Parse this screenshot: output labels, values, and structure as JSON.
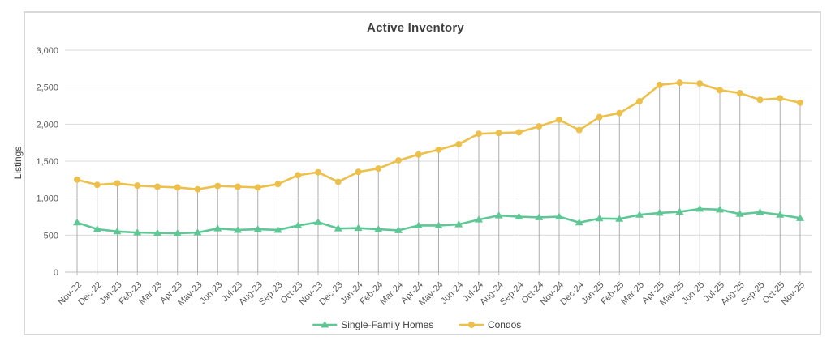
{
  "chart_data": {
    "type": "line",
    "title": "Active Inventory",
    "ylabel": "Listings",
    "xlabel": "",
    "ylim": [
      0,
      3000
    ],
    "ytick_step": 500,
    "grid": "horizontal",
    "legend_position": "bottom-center",
    "drop_lines_series": "Condos",
    "x": [
      "Nov-22",
      "Dec-22",
      "Jan-23",
      "Feb-23",
      "Mar-23",
      "Apr-23",
      "May-23",
      "Jun-23",
      "Jul-23",
      "Aug-23",
      "Sep-23",
      "Oct-23",
      "Nov-23",
      "Dec-23",
      "Jan-24",
      "Feb-24",
      "Mar-24",
      "Apr-24",
      "May-24",
      "Jun-24",
      "Jul-24",
      "Aug-24",
      "Sep-24",
      "Oct-24",
      "Nov-24",
      "Dec-24",
      "Jan-25",
      "Feb-25",
      "Mar-25",
      "Apr-25",
      "May-25",
      "Jun-25",
      "Jul-25",
      "Aug-25",
      "Sep-25",
      "Oct-25",
      "Nov-25"
    ],
    "series": [
      {
        "name": "Single-Family Homes",
        "marker": "triangle",
        "color": "#5FC795",
        "values": [
          670,
          580,
          550,
          535,
          530,
          525,
          535,
          590,
          570,
          580,
          570,
          630,
          675,
          590,
          595,
          580,
          565,
          630,
          630,
          645,
          710,
          765,
          750,
          740,
          750,
          670,
          725,
          720,
          775,
          800,
          815,
          855,
          845,
          785,
          810,
          775,
          730
        ]
      },
      {
        "name": "Condos",
        "marker": "circle",
        "color": "#EDC04B",
        "values": [
          1250,
          1180,
          1200,
          1170,
          1155,
          1145,
          1120,
          1165,
          1155,
          1145,
          1190,
          1310,
          1350,
          1220,
          1355,
          1400,
          1510,
          1590,
          1655,
          1730,
          1870,
          1880,
          1890,
          1970,
          2060,
          1920,
          2095,
          2150,
          2310,
          2530,
          2560,
          2550,
          2460,
          2420,
          2330,
          2350,
          2290
        ]
      }
    ],
    "colors": {
      "gridline": "#d9d9d9",
      "drop_line": "#a6a6a6",
      "axis_line": "#bfbfbf",
      "tick_text": "#595959",
      "title_text": "#404040",
      "frame_border": "#d9d9d9",
      "legend_text": "#404040"
    }
  }
}
